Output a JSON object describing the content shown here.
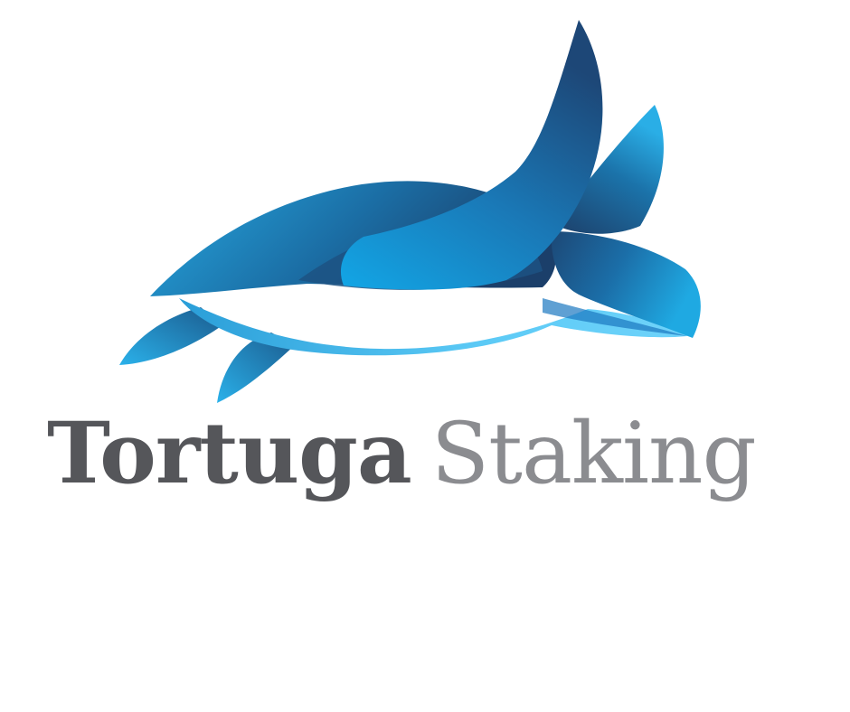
{
  "brand": {
    "name_primary": "Tortuga",
    "name_secondary": "Staking",
    "logo_icon": "sea-turtle-icon"
  },
  "colors": {
    "turtle_dark": "#1b4f7a",
    "turtle_mid": "#1787c2",
    "turtle_light": "#36b8ec",
    "turtle_pale": "#5cc9f5",
    "text_primary": "#55565a",
    "text_secondary": "#8b8c90",
    "background": "#ffffff"
  }
}
